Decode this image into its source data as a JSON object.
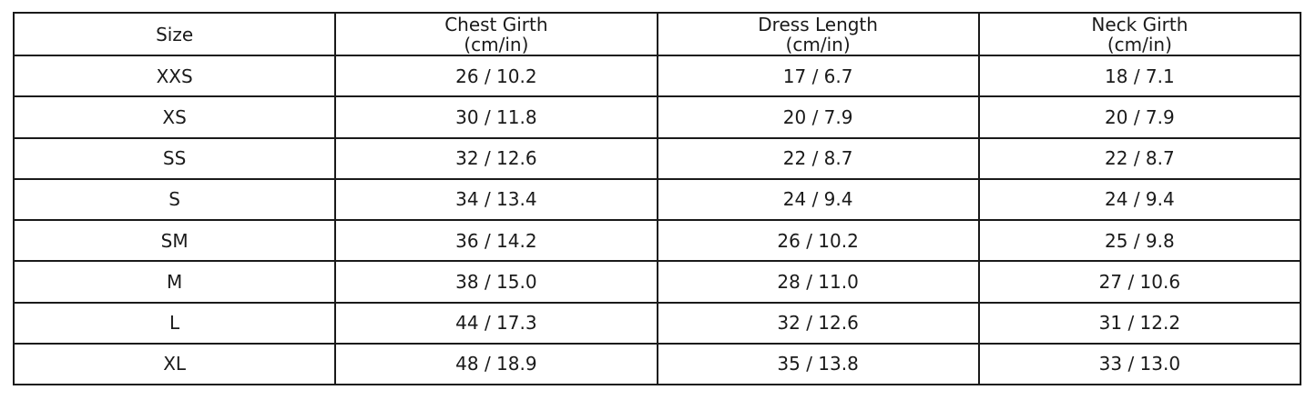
{
  "chart_data": {
    "type": "table",
    "columns": [
      {
        "title": "Size",
        "unit": ""
      },
      {
        "title": "Chest Girth",
        "unit": "(cm/in)"
      },
      {
        "title": "Dress Length",
        "unit": "(cm/in)"
      },
      {
        "title": "Neck Girth",
        "unit": "(cm/in)"
      }
    ],
    "rows": [
      {
        "size": "XXS",
        "chest_girth": "26 / 10.2",
        "dress_length": "17 / 6.7",
        "neck_girth": "18 / 7.1"
      },
      {
        "size": "XS",
        "chest_girth": "30 / 11.8",
        "dress_length": "20 / 7.9",
        "neck_girth": "20 / 7.9"
      },
      {
        "size": "SS",
        "chest_girth": "32 / 12.6",
        "dress_length": "22 / 8.7",
        "neck_girth": "22 / 8.7"
      },
      {
        "size": "S",
        "chest_girth": "34 / 13.4",
        "dress_length": "24 / 9.4",
        "neck_girth": "24 / 9.4"
      },
      {
        "size": "SM",
        "chest_girth": "36 / 14.2",
        "dress_length": "26 / 10.2",
        "neck_girth": "25 / 9.8"
      },
      {
        "size": "M",
        "chest_girth": "38 / 15.0",
        "dress_length": "28 / 11.0",
        "neck_girth": "27 / 10.6"
      },
      {
        "size": "L",
        "chest_girth": "44 / 17.3",
        "dress_length": "32 / 12.6",
        "neck_girth": "31 / 12.2"
      },
      {
        "size": "XL",
        "chest_girth": "48 / 18.9",
        "dress_length": "35 / 13.8",
        "neck_girth": "33 / 13.0"
      }
    ]
  },
  "colors": {
    "border": "#1a1a1a",
    "text": "#1a1a1a",
    "background": "#ffffff"
  }
}
